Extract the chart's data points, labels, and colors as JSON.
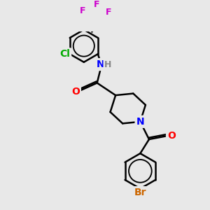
{
  "background_color": "#e8e8e8",
  "bond_color": "#000000",
  "bond_width": 1.8,
  "atom_colors": {
    "C": "#000000",
    "N": "#0000ff",
    "O": "#ff0000",
    "F": "#cc00cc",
    "Cl": "#00aa00",
    "Br": "#cc6600",
    "H": "#888888"
  },
  "font_size": 9,
  "figsize": [
    3.0,
    3.0
  ],
  "dpi": 100,
  "xlim": [
    0,
    10
  ],
  "ylim": [
    0,
    10
  ]
}
